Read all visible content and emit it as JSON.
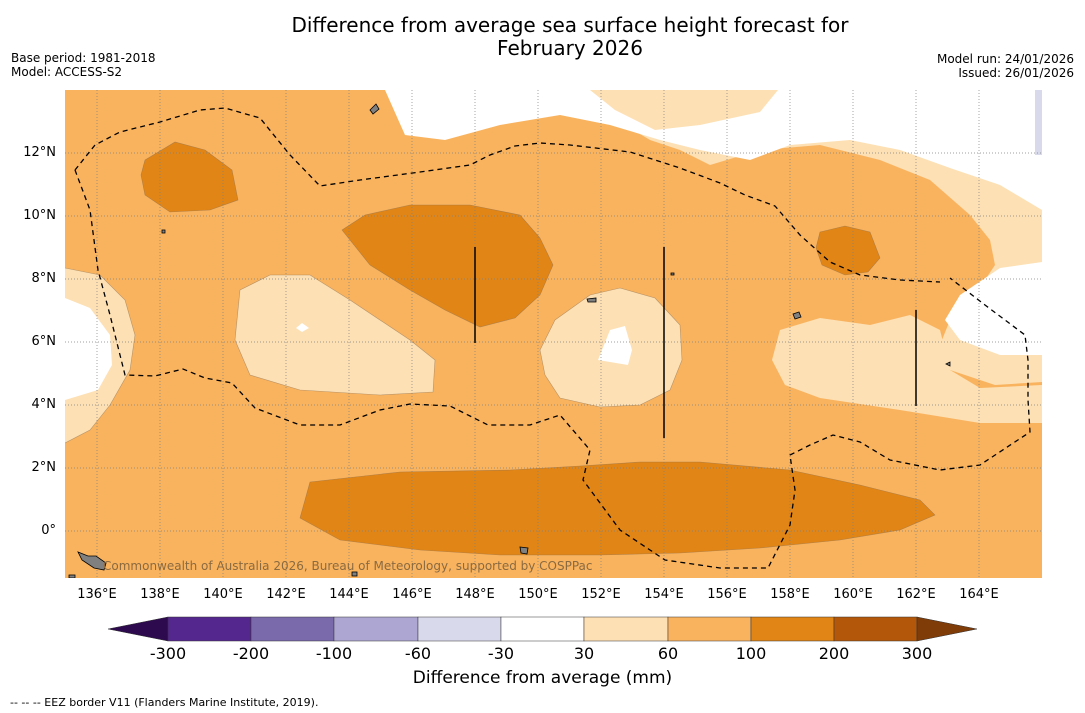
{
  "header": {
    "title_line1": "Difference from average sea surface height forecast for",
    "title_line2": "February 2026",
    "base_period": "Base period: 1981-2018",
    "model": "Model: ACCESS-S2",
    "model_run": "Model run: 24/01/2026",
    "issued": "Issued: 26/01/2026"
  },
  "map": {
    "lat_labels": [
      "12°N",
      "10°N",
      "8°N",
      "6°N",
      "4°N",
      "2°N",
      "0°"
    ],
    "lon_labels": [
      "136°E",
      "138°E",
      "140°E",
      "142°E",
      "144°E",
      "146°E",
      "148°E",
      "150°E",
      "152°E",
      "154°E",
      "156°E",
      "158°E",
      "160°E",
      "162°E",
      "164°E"
    ],
    "copyright": "Commonwealth of Australia 2026, Bureau of Meteorology, supported by COSPPac"
  },
  "colorbar": {
    "ticks": [
      "-300",
      "-200",
      "-100",
      "-60",
      "-30",
      "30",
      "60",
      "100",
      "200",
      "300"
    ],
    "title": "Difference from average (mm)",
    "colors": {
      "under": "#2d0a4e",
      "c1": "#54278f",
      "c2": "#7a6aac",
      "c3": "#aea6d2",
      "c4": "#d9d9ec",
      "c5": "#ffffff",
      "c6": "#fde0b4",
      "c7": "#f9b35f",
      "c8": "#e08516",
      "c9": "#b3580b",
      "over": "#7f3b08"
    }
  },
  "footer": {
    "legend": "--  --  -- EEZ border V11 (Flanders Marine Institute, 2019)."
  }
}
